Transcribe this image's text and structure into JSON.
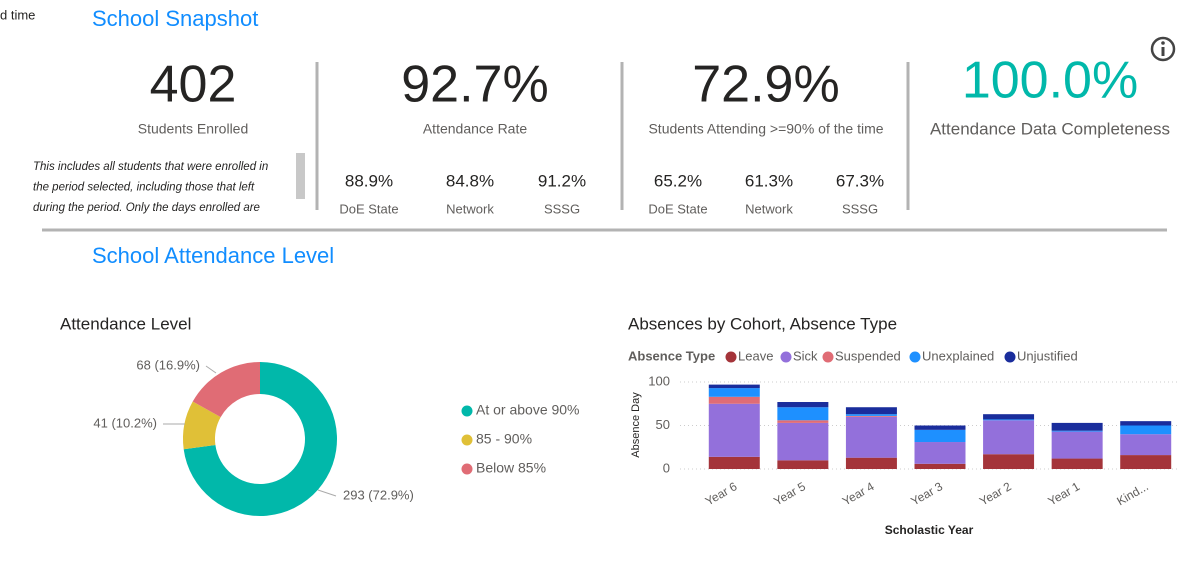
{
  "corner_fragment": "d time",
  "page_title": "School Snapshot",
  "kpis": [
    {
      "value": "402",
      "label": "Students Enrolled",
      "note_lines": [
        "This includes all students that were enrolled in",
        "the period selected, including those that left",
        "during the period. Only the days enrolled are"
      ]
    },
    {
      "value": "92.7%",
      "label": "Attendance Rate",
      "comparisons": [
        {
          "value": "88.9%",
          "label": "DoE State"
        },
        {
          "value": "84.8%",
          "label": "Network"
        },
        {
          "value": "91.2%",
          "label": "SSSG"
        }
      ]
    },
    {
      "value": "72.9%",
      "label": "Students Attending >=90% of the time",
      "comparisons": [
        {
          "value": "65.2%",
          "label": "DoE State"
        },
        {
          "value": "61.3%",
          "label": "Network"
        },
        {
          "value": "67.3%",
          "label": "SSSG"
        }
      ]
    },
    {
      "value": "100.0%",
      "label": "Attendance Data Completeness"
    }
  ],
  "section_title": "School Attendance Level",
  "chart_data": [
    {
      "type": "donut",
      "title": "Attendance Level",
      "categories": [
        "At or above 90%",
        "85 - 90%",
        "Below 85%"
      ],
      "values": [
        293,
        41,
        68
      ],
      "value_labels": [
        "293 (72.9%)",
        "41 (10.2%)",
        "68 (16.9%)"
      ],
      "colors": [
        "#01b8aa",
        "#e0c037",
        "#e06c75"
      ]
    },
    {
      "type": "stacked_bar",
      "title": "Absences by Cohort, Absence Type",
      "legend_title": "Absence Type",
      "x_label": "Scholastic Year",
      "y_label": "Absence Day",
      "categories": [
        "Year 6",
        "Year 5",
        "Year 4",
        "Year 3",
        "Year 2",
        "Year 1",
        "Kind..."
      ],
      "series": [
        {
          "name": "Leave",
          "color": "#a4343a",
          "values": [
            14,
            10,
            13,
            6,
            17,
            12,
            16
          ]
        },
        {
          "name": "Sick",
          "color": "#9370db",
          "values": [
            61,
            43,
            47,
            25,
            39,
            31,
            24
          ]
        },
        {
          "name": "Suspended",
          "color": "#e06c75",
          "values": [
            8,
            3,
            1,
            0,
            0,
            0,
            0
          ]
        },
        {
          "name": "Unexplained",
          "color": "#1e90ff",
          "values": [
            10,
            15,
            2,
            14,
            1,
            1,
            10
          ]
        },
        {
          "name": "Unjustified",
          "color": "#1a2d9c",
          "values": [
            4,
            6,
            8,
            5,
            6,
            9,
            5
          ]
        }
      ],
      "ylim": [
        0,
        100
      ],
      "yticks": [
        0,
        50,
        100
      ],
      "grid": true
    }
  ]
}
